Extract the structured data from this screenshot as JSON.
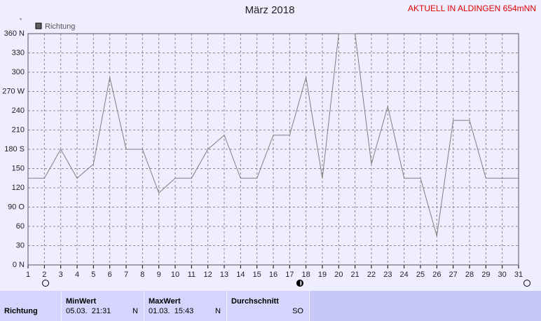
{
  "chart_data": {
    "type": "line",
    "title": "März 2018",
    "subtitle": "AKTUELL IN ALDINGEN 654mNN",
    "y_unit": "°",
    "x": [
      1,
      2,
      3,
      4,
      5,
      6,
      7,
      8,
      9,
      10,
      11,
      12,
      13,
      14,
      15,
      16,
      17,
      18,
      19,
      20,
      21,
      22,
      23,
      24,
      25,
      26,
      27,
      28,
      29,
      30,
      31
    ],
    "xlim": [
      1,
      31
    ],
    "xticks": [
      1,
      2,
      3,
      4,
      5,
      6,
      7,
      8,
      9,
      10,
      11,
      12,
      13,
      14,
      15,
      16,
      17,
      18,
      19,
      20,
      21,
      22,
      23,
      24,
      25,
      26,
      27,
      28,
      29,
      30,
      31
    ],
    "ylim": [
      0,
      360
    ],
    "yticks": [
      {
        "value": 0,
        "label": "0 N"
      },
      30,
      60,
      {
        "value": 90,
        "label": "90 O"
      },
      120,
      150,
      {
        "value": 180,
        "label": "180 S"
      },
      210,
      240,
      {
        "value": 270,
        "label": "270 W"
      },
      300,
      330,
      {
        "value": 360,
        "label": "360 N"
      }
    ],
    "grid": true,
    "series": [
      {
        "name": "Richtung",
        "color": "#808080",
        "values": [
          135,
          135,
          180,
          135,
          157,
          292,
          180,
          180,
          112,
          135,
          135,
          180,
          202,
          135,
          135,
          202,
          202,
          292,
          135,
          360,
          360,
          157,
          247,
          135,
          135,
          45,
          225,
          225,
          135,
          135,
          135
        ]
      }
    ]
  },
  "table": {
    "row_label": "Richtung",
    "columns": [
      {
        "header": "MinWert",
        "time": "05.03.  21:31",
        "direction": "N"
      },
      {
        "header": "MaxWert",
        "time": "01.03.  15:43",
        "direction": "N"
      },
      {
        "header": "Durchschnitt",
        "direction": "SO"
      }
    ]
  }
}
